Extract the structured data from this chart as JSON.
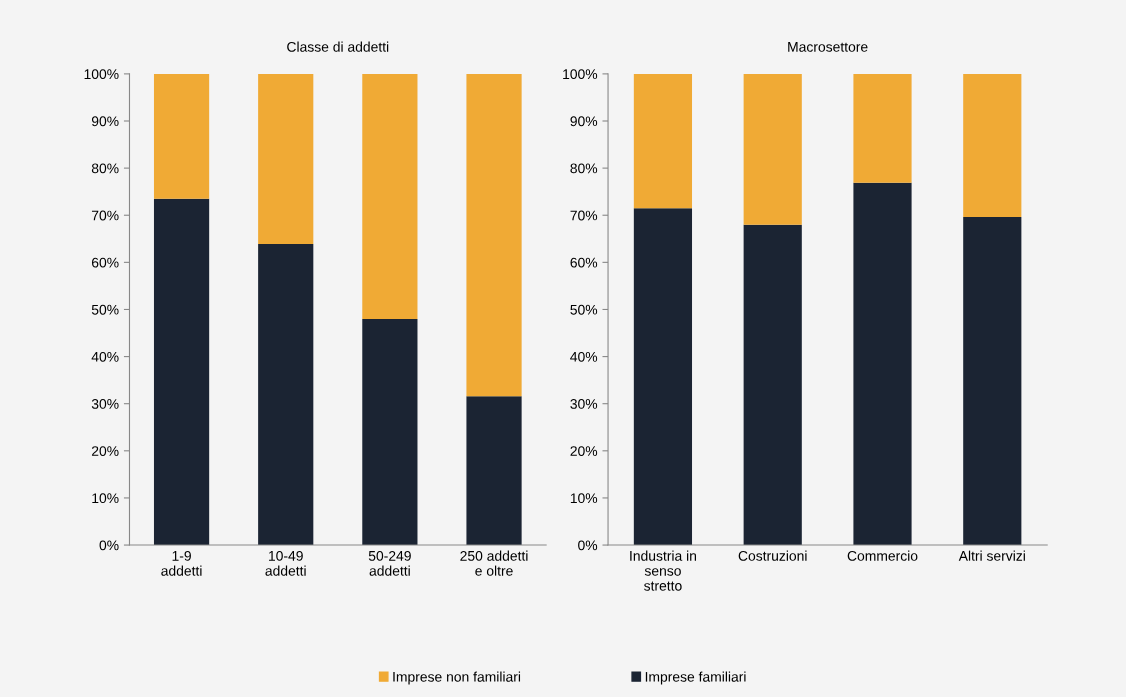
{
  "chart_data": [
    {
      "type": "bar",
      "stacked": true,
      "title": "Classe di addetti",
      "categories": [
        "1-9\naddetti",
        "10-49\naddetti",
        "50-249\naddetti",
        "250 addetti\ne oltre"
      ],
      "series": [
        {
          "name": "Imprese familiari",
          "color": "#1b2433",
          "values": [
            73.5,
            63.9,
            48.0,
            31.6
          ]
        },
        {
          "name": "Imprese non familiari",
          "color": "#f0aa35",
          "values": [
            26.5,
            36.1,
            52.0,
            68.4
          ]
        }
      ],
      "ylim": [
        0,
        100
      ],
      "yticks": [
        {
          "value": 0,
          "label": "0%"
        },
        {
          "value": 10,
          "label": "10%"
        },
        {
          "value": 20,
          "label": "20%"
        },
        {
          "value": 30,
          "label": "30%"
        },
        {
          "value": 40,
          "label": "40%"
        },
        {
          "value": 50,
          "label": "50%"
        },
        {
          "value": 60,
          "label": "60%"
        },
        {
          "value": 70,
          "label": "70%"
        },
        {
          "value": 80,
          "label": "80%"
        },
        {
          "value": 90,
          "label": "90%"
        },
        {
          "value": 100,
          "label": "100%"
        }
      ],
      "legend": "bottom"
    },
    {
      "type": "bar",
      "stacked": true,
      "title": "Macrosettore",
      "categories": [
        "Industria in\nsenso\nstretto",
        "Costruzioni",
        "Commercio",
        "Altri servizi"
      ],
      "series": [
        {
          "color": "#1b2433",
          "values": [
            71.5,
            68.0,
            76.9,
            69.6
          ]
        },
        {
          "color": "#f0aa35",
          "values": [
            28.5,
            32.0,
            23.1,
            30.4
          ]
        }
      ],
      "ylim": [
        0,
        100
      ],
      "yticks": [
        {
          "value": 0,
          "label": "0%"
        },
        {
          "value": 10,
          "label": "10%"
        },
        {
          "value": 20,
          "label": "20%"
        },
        {
          "value": 30,
          "label": "30%"
        },
        {
          "value": 40,
          "label": "40%"
        },
        {
          "value": 50,
          "label": "50%"
        },
        {
          "value": 60,
          "label": "60%"
        },
        {
          "value": 70,
          "label": "70%"
        },
        {
          "value": 80,
          "label": "80%"
        },
        {
          "value": 90,
          "label": "90%"
        },
        {
          "value": 100,
          "label": "100%"
        }
      ]
    }
  ]
}
